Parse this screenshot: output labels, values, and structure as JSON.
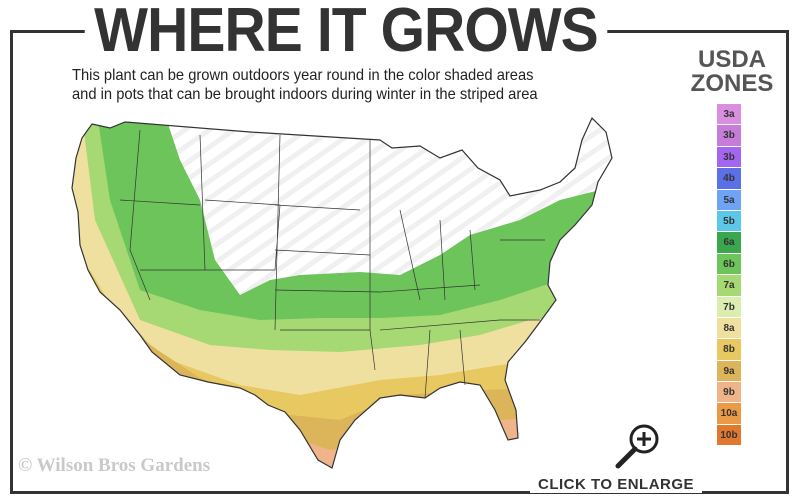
{
  "title": "WHERE IT GROWS",
  "subtitle_line1": "This plant can be grown outdoors year round in the color shaded areas",
  "subtitle_line2": "and in pots that can be brought indoors during winter in the striped area",
  "legend": {
    "title_line1": "USDA",
    "title_line2": "ZONES",
    "zones": [
      {
        "label": "3a",
        "color": "#d98ee0"
      },
      {
        "label": "3b",
        "color": "#c77cd9"
      },
      {
        "label": "3b",
        "color": "#a366f0"
      },
      {
        "label": "4b",
        "color": "#5b70e6"
      },
      {
        "label": "5a",
        "color": "#6fa3f5"
      },
      {
        "label": "5b",
        "color": "#5cc8e8"
      },
      {
        "label": "6a",
        "color": "#3aa64e"
      },
      {
        "label": "6b",
        "color": "#6cc45a"
      },
      {
        "label": "7a",
        "color": "#a6d873"
      },
      {
        "label": "7b",
        "color": "#dcedb0"
      },
      {
        "label": "8a",
        "color": "#f0e0a0"
      },
      {
        "label": "8b",
        "color": "#e8c860"
      },
      {
        "label": "9a",
        "color": "#dcb45a"
      },
      {
        "label": "9b",
        "color": "#f0b48a"
      },
      {
        "label": "10a",
        "color": "#eb9a45"
      },
      {
        "label": "10b",
        "color": "#e0782e"
      }
    ]
  },
  "copyright": "© Wilson Bros Gardens",
  "enlarge_label": "CLICK TO ENLARGE",
  "icons": {
    "zoom": "magnifier-plus-icon"
  }
}
